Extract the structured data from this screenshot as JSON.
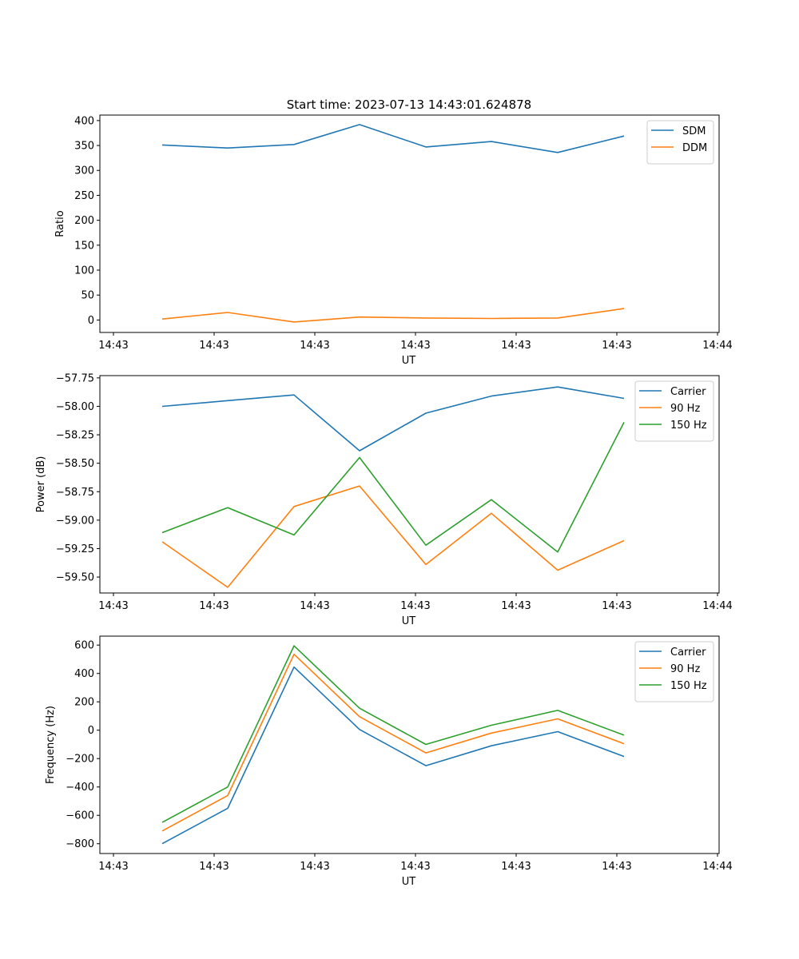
{
  "figure": {
    "title": "Start time: 2023-07-13 14:43:01.624878"
  },
  "chart_data": [
    {
      "type": "line",
      "title": "Start time: 2023-07-13 14:43:01.624878",
      "xlabel": "UT",
      "ylabel": "Ratio",
      "x_tick_labels": [
        "14:43",
        "14:43",
        "14:43",
        "14:43",
        "14:43",
        "14:43",
        "14:44"
      ],
      "y_ticks": [
        0,
        50,
        100,
        150,
        200,
        250,
        300,
        350,
        400
      ],
      "y_tick_labels": [
        "0",
        "50",
        "100",
        "150",
        "200",
        "250",
        "300",
        "350",
        "400"
      ],
      "ylim": [
        -25,
        411
      ],
      "legend": "top-right",
      "series": [
        {
          "name": "SDM",
          "color": "#1f77b4",
          "values": [
            351,
            345,
            352,
            392,
            347,
            358,
            336,
            369
          ]
        },
        {
          "name": "DDM",
          "color": "#ff7f0e",
          "values": [
            2,
            15,
            -4,
            6,
            4,
            3,
            4,
            23
          ]
        }
      ]
    },
    {
      "type": "line",
      "title": "",
      "xlabel": "UT",
      "ylabel": "Power (dB)",
      "x_tick_labels": [
        "14:43",
        "14:43",
        "14:43",
        "14:43",
        "14:43",
        "14:43",
        "14:44"
      ],
      "y_ticks": [
        -59.5,
        -59.25,
        -59.0,
        -58.75,
        -58.5,
        -58.25,
        -58.0,
        -57.75
      ],
      "y_tick_labels": [
        "−59.50",
        "−59.25",
        "−59.00",
        "−58.75",
        "−58.50",
        "−58.25",
        "−58.00",
        "−57.75"
      ],
      "ylim": [
        -59.64,
        -57.73
      ],
      "legend": "top-right",
      "series": [
        {
          "name": "Carrier",
          "color": "#1f77b4",
          "values": [
            -58.0,
            -57.95,
            -57.9,
            -58.39,
            -58.06,
            -57.91,
            -57.83,
            -57.93
          ]
        },
        {
          "name": "90 Hz",
          "color": "#ff7f0e",
          "values": [
            -59.19,
            -59.59,
            -58.88,
            -58.7,
            -59.39,
            -58.94,
            -59.44,
            -59.18
          ]
        },
        {
          "name": "150 Hz",
          "color": "#2ca02c",
          "values": [
            -59.11,
            -58.89,
            -59.13,
            -58.45,
            -59.22,
            -58.82,
            -59.28,
            -58.14
          ]
        }
      ]
    },
    {
      "type": "line",
      "title": "",
      "xlabel": "UT",
      "ylabel": "Frequency (Hz)",
      "x_tick_labels": [
        "14:43",
        "14:43",
        "14:43",
        "14:43",
        "14:43",
        "14:43",
        "14:44"
      ],
      "y_ticks": [
        -800,
        -600,
        -400,
        -200,
        0,
        200,
        400,
        600
      ],
      "y_tick_labels": [
        "−800",
        "−600",
        "−400",
        "−200",
        "0",
        "200",
        "400",
        "600"
      ],
      "ylim": [
        -869,
        663
      ],
      "legend": "top-right",
      "series": [
        {
          "name": "Carrier",
          "color": "#1f77b4",
          "values": [
            -800,
            -550,
            445,
            5,
            -250,
            -110,
            -10,
            -185
          ]
        },
        {
          "name": "90 Hz",
          "color": "#ff7f0e",
          "values": [
            -710,
            -460,
            535,
            95,
            -160,
            -20,
            80,
            -95
          ]
        },
        {
          "name": "150 Hz",
          "color": "#2ca02c",
          "values": [
            -650,
            -400,
            595,
            155,
            -100,
            35,
            140,
            -35
          ]
        }
      ]
    }
  ]
}
